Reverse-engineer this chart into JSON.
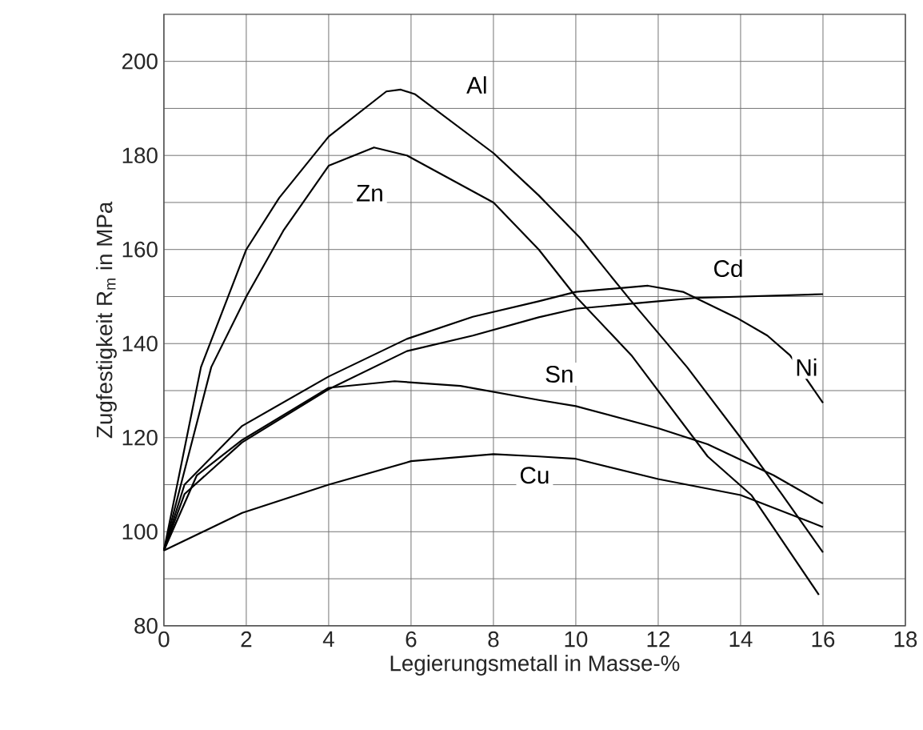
{
  "chart_data": {
    "type": "line",
    "xlabel": "Legierungsmetall in Masse-%",
    "ylabel": "Zugfestigkeit R$_{m}$ in MPa",
    "xlim": [
      0,
      18
    ],
    "ylim": [
      80,
      210
    ],
    "xticks": [
      0,
      2,
      4,
      6,
      8,
      10,
      12,
      14,
      16,
      18
    ],
    "yticks": [
      80,
      {
        "value": 90,
        "label": null
      },
      100,
      {
        "value": 110,
        "label": null
      },
      120,
      {
        "value": 130,
        "label": null
      },
      140,
      {
        "value": 150,
        "label": null
      },
      160,
      {
        "value": 170,
        "label": null
      },
      180,
      {
        "value": 190,
        "label": null
      },
      200
    ],
    "grid": true,
    "legend": false,
    "marker": "none",
    "line_style": "solid",
    "series": [
      {
        "name": "Al",
        "color": "#000000",
        "x": [
          0,
          0.9,
          2,
          2.8,
          4,
          5.4,
          5.75,
          6.1,
          8,
          9.1,
          10.1,
          11.3,
          12.7,
          14,
          15,
          16
        ],
        "values": [
          96,
          135,
          160,
          171,
          184,
          193.6,
          194,
          193,
          180.5,
          171.5,
          162.5,
          149.5,
          135,
          120,
          108,
          95.6
        ]
      },
      {
        "name": "Zn",
        "color": "#000000",
        "x": [
          0,
          1.15,
          2,
          2.9,
          4,
          5.1,
          5.9,
          8,
          9.1,
          10,
          11.35,
          13.2,
          14.26,
          15.9
        ],
        "values": [
          96,
          135,
          150,
          164,
          177.8,
          181.7,
          180,
          170,
          160,
          150,
          137.5,
          116,
          107.8,
          86.6
        ]
      },
      {
        "name": "Cd",
        "color": "#000000",
        "x": [
          0,
          0.5,
          1.9,
          4,
          5.9,
          7.5,
          9.1,
          10,
          12,
          12.9,
          16
        ],
        "values": [
          96,
          108,
          119,
          130.3,
          138.4,
          141.7,
          145.6,
          147.4,
          149,
          149.7,
          150.5
        ]
      },
      {
        "name": "Sn",
        "color": "#000000",
        "x": [
          0,
          0.8,
          1.9,
          4,
          5.6,
          7.2,
          9.1,
          10,
          12,
          13.2,
          14.8,
          16
        ],
        "values": [
          96,
          112,
          119.5,
          130.6,
          132,
          131,
          128,
          126.7,
          122,
          118.6,
          112,
          106
        ]
      },
      {
        "name": "Ni",
        "color": "#000000",
        "x": [
          0,
          0.5,
          1.9,
          4,
          5.9,
          7.5,
          9.1,
          10,
          11.75,
          12.6,
          13.9,
          14.65,
          15.2,
          16
        ],
        "values": [
          96,
          110,
          122.5,
          133,
          141,
          145.7,
          149,
          151,
          152.3,
          151,
          145.5,
          141.7,
          137.5,
          127.4
        ]
      },
      {
        "name": "Cu",
        "color": "#000000",
        "x": [
          0,
          1.9,
          4,
          6,
          8,
          9.1,
          10,
          12,
          14,
          16
        ],
        "values": [
          96,
          104,
          110,
          115,
          116.5,
          116,
          115.5,
          111.2,
          107.8,
          101
        ]
      }
    ]
  }
}
